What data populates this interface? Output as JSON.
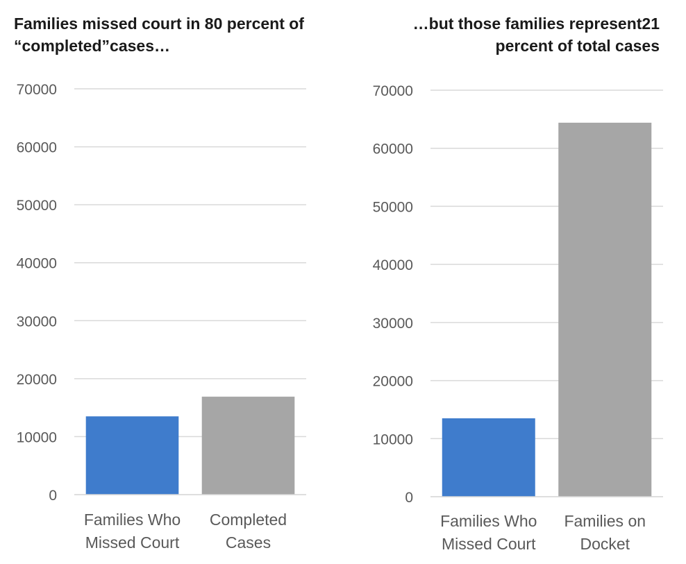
{
  "colors": {
    "accent_blue": "#3f7ccc",
    "neutral_gray": "#a6a6a6",
    "gridline": "#d9d9d9",
    "axis_text": "#595959"
  },
  "chart_data": [
    {
      "type": "bar",
      "title": "Families missed court in 80 percent of “completed”cases…",
      "title_lines": [
        "Families missed court in 80 percent of",
        "“completed”cases…"
      ],
      "categories": [
        "Families Who Missed Court",
        "Completed Cases"
      ],
      "category_lines": [
        [
          "Families Who",
          "Missed Court"
        ],
        [
          "Completed",
          "Cases"
        ]
      ],
      "values": [
        13500,
        16900
      ],
      "bar_colors": [
        "#3f7ccc",
        "#a6a6a6"
      ],
      "ylim": [
        0,
        70000
      ],
      "yticks": [
        0,
        10000,
        20000,
        30000,
        40000,
        50000,
        60000,
        70000
      ],
      "ytick_labels": [
        "0",
        "10000",
        "20000",
        "30000",
        "40000",
        "50000",
        "60000",
        "70000"
      ],
      "grid": true,
      "legend": "none",
      "xlabel": "",
      "ylabel": ""
    },
    {
      "type": "bar",
      "title": "…but those families represent21 percent of total cases",
      "title_lines": [
        "…but those families represent21",
        "percent of total cases"
      ],
      "categories": [
        "Families Who Missed Court",
        "Families on Docket"
      ],
      "category_lines": [
        [
          "Families Who",
          "Missed Court"
        ],
        [
          "Families on",
          "Docket"
        ]
      ],
      "values": [
        13500,
        64400
      ],
      "bar_colors": [
        "#3f7ccc",
        "#a6a6a6"
      ],
      "ylim": [
        0,
        70000
      ],
      "yticks": [
        0,
        10000,
        20000,
        30000,
        40000,
        50000,
        60000,
        70000
      ],
      "ytick_labels": [
        "0",
        "10000",
        "20000",
        "30000",
        "40000",
        "50000",
        "60000",
        "70000"
      ],
      "grid": true,
      "legend": "none",
      "xlabel": "",
      "ylabel": ""
    }
  ]
}
